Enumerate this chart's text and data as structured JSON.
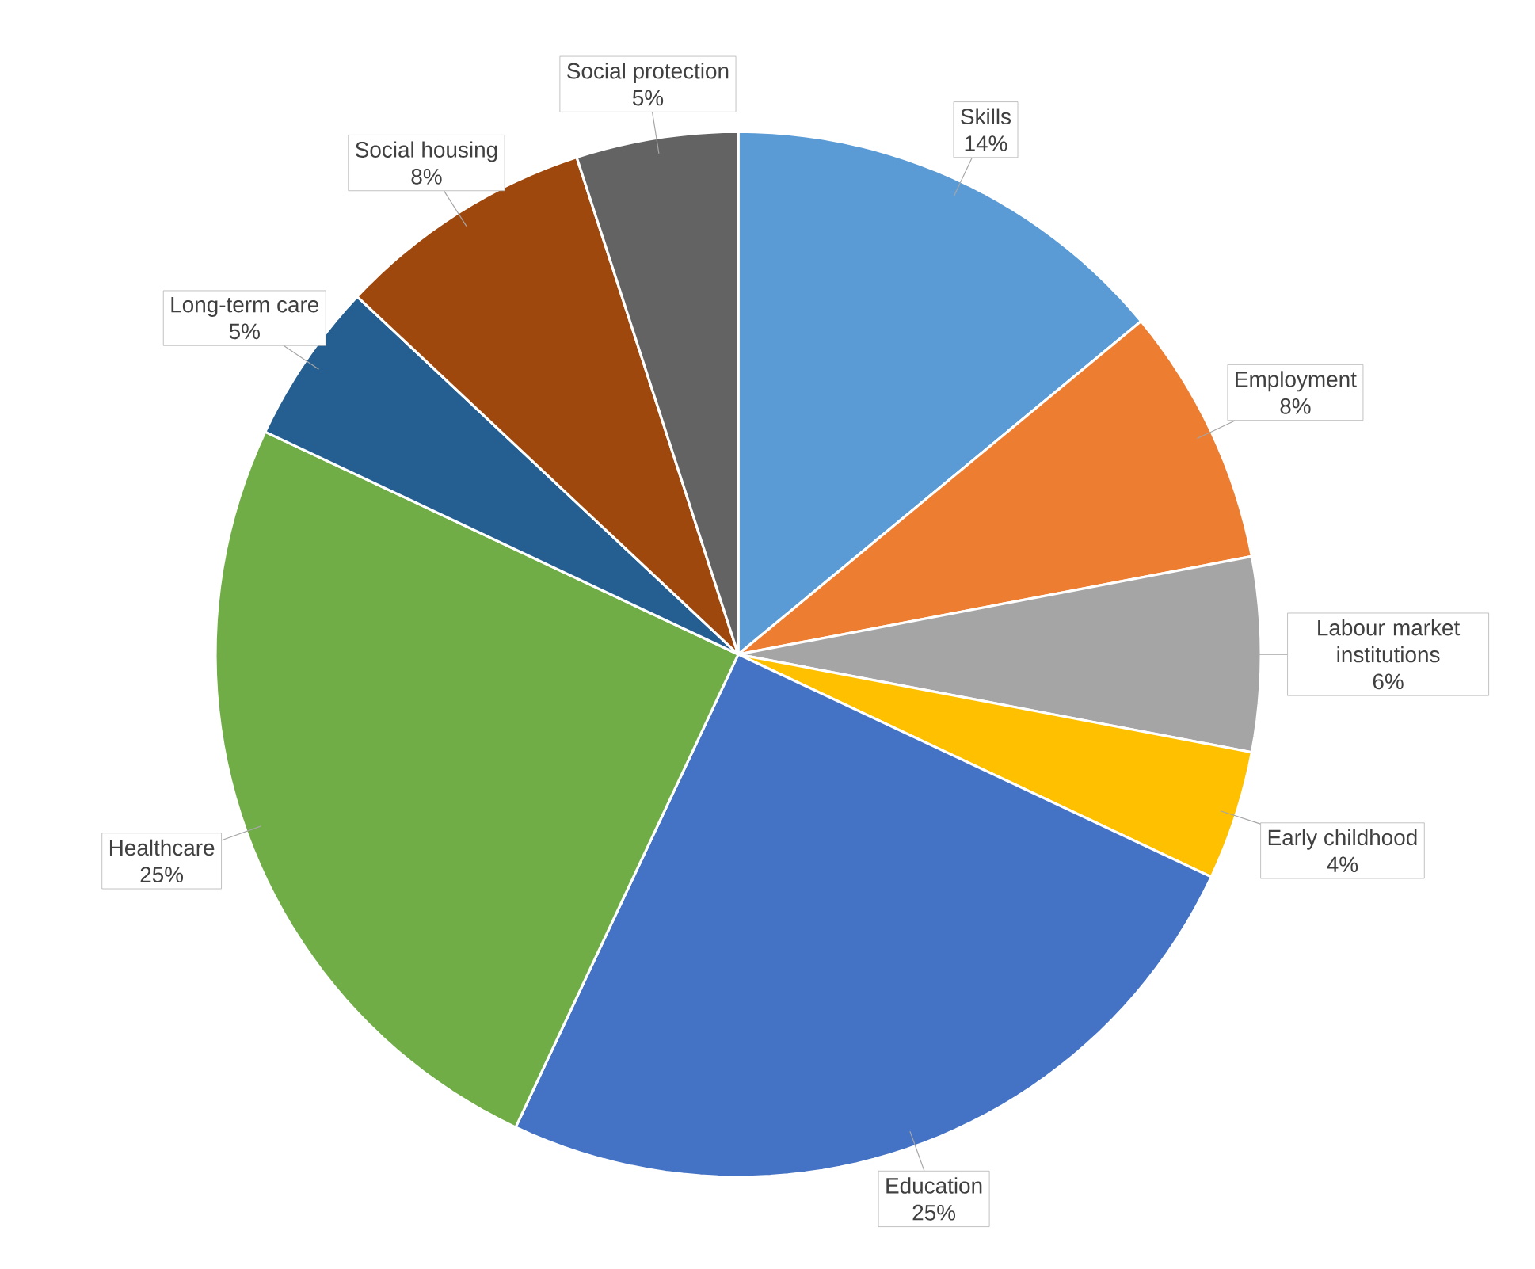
{
  "chart_data": {
    "type": "pie",
    "categories": [
      "Skills",
      "Employment",
      "Labour market institutions",
      "Early childhood",
      "Education",
      "Healthcare",
      "Long-term care",
      "Social housing",
      "Social protection"
    ],
    "values": [
      14,
      8,
      6,
      4,
      25,
      25,
      5,
      8,
      5
    ],
    "value_labels": [
      "14%",
      "8%",
      "6%",
      "4%",
      "25%",
      "25%",
      "5%",
      "8%",
      "5%"
    ],
    "colors": [
      "#5b9bd5",
      "#ed7d31",
      "#a5a5a5",
      "#ffc000",
      "#4472c4",
      "#70ad47",
      "#255e91",
      "#9e480e",
      "#636363"
    ]
  }
}
